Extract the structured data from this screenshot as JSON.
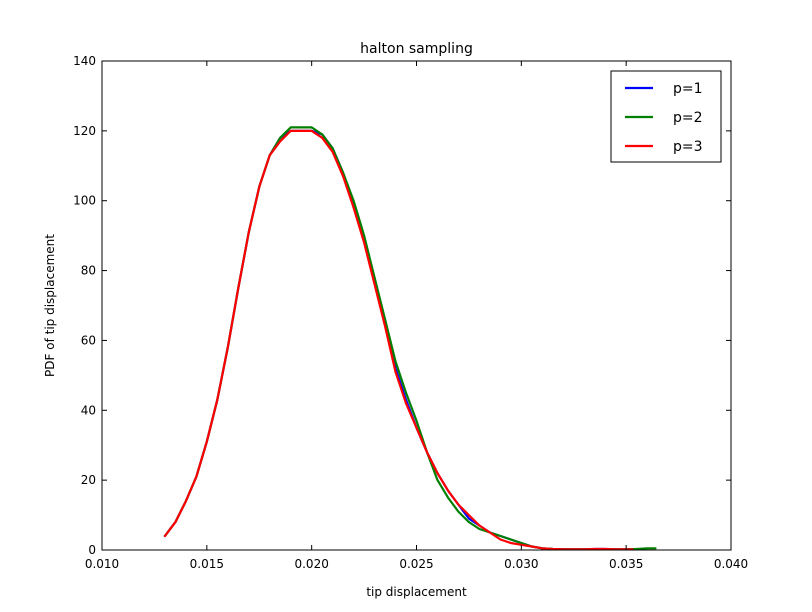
{
  "chart_data": {
    "type": "line",
    "title": "halton sampling",
    "xlabel": "tip displacement",
    "ylabel": "PDF of tip displacement",
    "xlim": [
      0.01,
      0.04
    ],
    "ylim": [
      0,
      140
    ],
    "xticks": [
      0.01,
      0.015,
      0.02,
      0.025,
      0.03,
      0.035,
      0.04
    ],
    "xtick_labels": [
      "0.010",
      "0.015",
      "0.020",
      "0.025",
      "0.030",
      "0.035",
      "0.040"
    ],
    "yticks": [
      0,
      20,
      40,
      60,
      80,
      100,
      120,
      140
    ],
    "ytick_labels": [
      "0",
      "20",
      "40",
      "60",
      "80",
      "100",
      "120",
      "140"
    ],
    "grid": false,
    "legend_position": "top-right",
    "series": [
      {
        "name": "p=1",
        "color": "#0000ff",
        "x": [
          0.013,
          0.0135,
          0.014,
          0.0145,
          0.015,
          0.0155,
          0.016,
          0.0165,
          0.017,
          0.0175,
          0.018,
          0.0185,
          0.019,
          0.0195,
          0.02,
          0.0205,
          0.021,
          0.0215,
          0.022,
          0.0225,
          0.023,
          0.0235,
          0.024,
          0.0245,
          0.025,
          0.0255,
          0.026,
          0.0265,
          0.027,
          0.0275,
          0.028,
          0.0285,
          0.029,
          0.0295,
          0.03,
          0.0305,
          0.031,
          0.0315,
          0.032,
          0.0325,
          0.033,
          0.0335,
          0.034,
          0.0345,
          0.035,
          0.0353
        ],
        "y": [
          4,
          8,
          14,
          21,
          31,
          43,
          58,
          75,
          91,
          104,
          113,
          118,
          120,
          120,
          120,
          119,
          115,
          108,
          99,
          89,
          77,
          65,
          52,
          43,
          35,
          28,
          22,
          17,
          13,
          9,
          7,
          5,
          4,
          3,
          2,
          1,
          0.5,
          0.3,
          0.2,
          0.2,
          0.2,
          0.3,
          0.3,
          0.2,
          0.2,
          0.2
        ]
      },
      {
        "name": "p=2",
        "color": "#008000",
        "x": [
          0.013,
          0.0135,
          0.014,
          0.0145,
          0.015,
          0.0155,
          0.016,
          0.0165,
          0.017,
          0.0175,
          0.018,
          0.0185,
          0.019,
          0.0195,
          0.02,
          0.0205,
          0.021,
          0.0215,
          0.022,
          0.0225,
          0.023,
          0.0235,
          0.024,
          0.0245,
          0.025,
          0.0255,
          0.026,
          0.0265,
          0.027,
          0.0275,
          0.028,
          0.0285,
          0.029,
          0.0295,
          0.03,
          0.0305,
          0.031,
          0.0315,
          0.032,
          0.0325,
          0.033,
          0.0335,
          0.034,
          0.0345,
          0.035,
          0.0355,
          0.036,
          0.0364
        ],
        "y": [
          4,
          8,
          14,
          21,
          31,
          43,
          58,
          75,
          91,
          104,
          113,
          118,
          121,
          121,
          121,
          119,
          115,
          108,
          100,
          90,
          78,
          66,
          54,
          45,
          37,
          28,
          20,
          15,
          11,
          8,
          6,
          5,
          4,
          3,
          2,
          1,
          0.5,
          0.3,
          0.2,
          0.2,
          0.2,
          0.2,
          0.2,
          0.2,
          0.2,
          0.3,
          0.5,
          0.5
        ]
      },
      {
        "name": "p=3",
        "color": "#ff0000",
        "x": [
          0.013,
          0.0135,
          0.014,
          0.0145,
          0.015,
          0.0155,
          0.016,
          0.0165,
          0.017,
          0.0175,
          0.018,
          0.0185,
          0.019,
          0.0195,
          0.02,
          0.0205,
          0.021,
          0.0215,
          0.022,
          0.0225,
          0.023,
          0.0235,
          0.024,
          0.0245,
          0.025,
          0.0255,
          0.026,
          0.0265,
          0.027,
          0.0275,
          0.028,
          0.0285,
          0.029,
          0.0295,
          0.03,
          0.0305,
          0.031,
          0.0315,
          0.032,
          0.0325,
          0.033,
          0.0335,
          0.034,
          0.0345,
          0.035,
          0.0353
        ],
        "y": [
          4,
          8,
          14,
          21,
          31,
          43,
          58,
          75,
          91,
          104,
          113,
          117,
          120,
          120,
          120,
          118,
          114,
          107,
          98,
          88,
          76,
          64,
          51,
          42,
          35,
          28,
          22,
          17,
          13,
          10,
          7,
          5,
          3,
          2,
          1.5,
          1,
          0.5,
          0.3,
          0.2,
          0.2,
          0.2,
          0.3,
          0.3,
          0.2,
          0.2,
          0.2
        ]
      }
    ]
  }
}
